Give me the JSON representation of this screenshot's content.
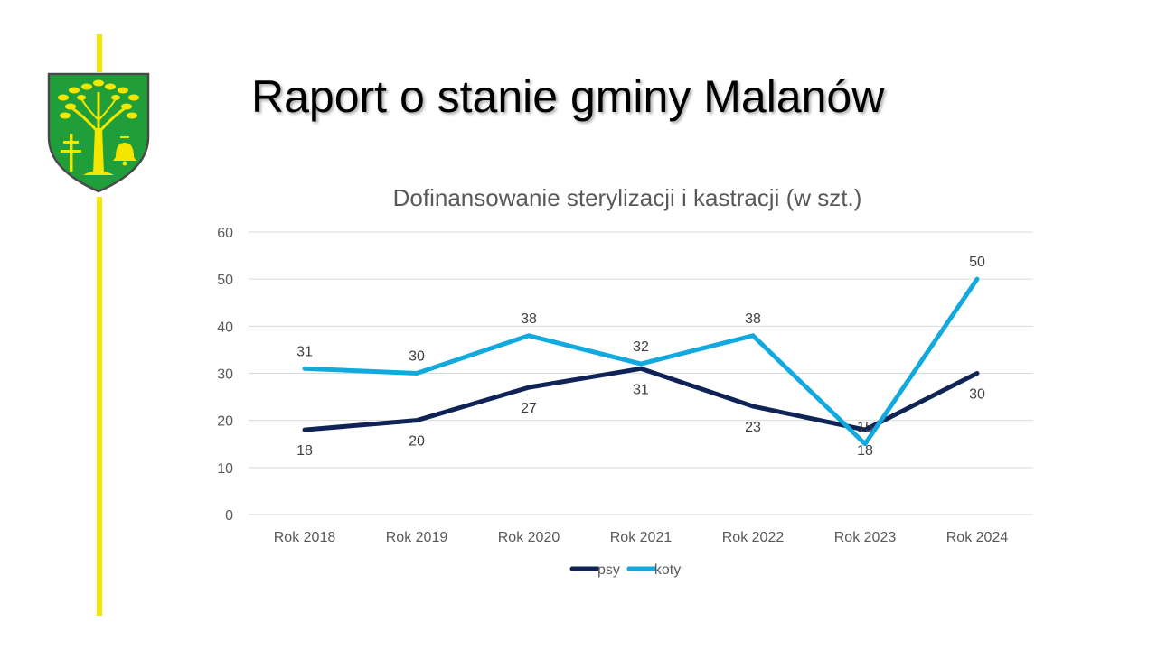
{
  "slide": {
    "title": "Raport o stanie gminy Malanów",
    "accent_color": "#f5e600"
  },
  "crest": {
    "icon": "municipal-coat-of-arms",
    "shield_color": "#1f9e3a",
    "emblem_color": "#f5e600"
  },
  "chart_data": {
    "type": "line",
    "title": "Dofinansowanie sterylizacji i kastracji (w szt.)",
    "categories": [
      "Rok 2018",
      "Rok 2019",
      "Rok 2020",
      "Rok 2021",
      "Rok 2022",
      "Rok 2023",
      "Rok 2024"
    ],
    "series": [
      {
        "name": "psy",
        "values": [
          18,
          20,
          27,
          31,
          23,
          18,
          30
        ],
        "color": "#0f2356",
        "label_position": "below"
      },
      {
        "name": "koty",
        "values": [
          31,
          30,
          38,
          32,
          38,
          15,
          50
        ],
        "color": "#12a9df",
        "label_position": "above"
      }
    ],
    "ylim": [
      0,
      60
    ],
    "yticks": [
      "0",
      "10",
      "20",
      "30",
      "40",
      "50",
      "60"
    ],
    "grid": true,
    "legend_position": "bottom",
    "xlabel": "",
    "ylabel": ""
  }
}
